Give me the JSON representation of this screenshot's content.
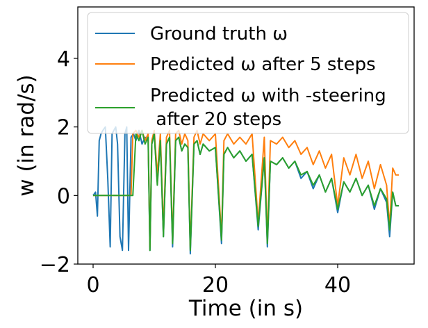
{
  "chart_data": {
    "type": "line",
    "title": "",
    "xlabel": "Time (in s)",
    "ylabel": "w (in rad/s)",
    "xlim": [
      -2.5,
      52.5
    ],
    "ylim": [
      -2,
      5.5
    ],
    "xticks": [
      0,
      20,
      40
    ],
    "xtick_labels": [
      "0",
      "20",
      "40"
    ],
    "yticks": [
      -2,
      0,
      2,
      4
    ],
    "ytick_labels": [
      "−2",
      "0",
      "2",
      "4"
    ],
    "legend_position": "top-left",
    "series": [
      {
        "name": "Ground truth ω",
        "legend_lines": [
          "Ground truth ω"
        ],
        "color": "#1f77b4",
        "x": [
          0,
          0.4,
          0.7,
          1.0,
          1.3,
          1.6,
          2.0,
          2.4,
          2.8,
          3.1,
          3.4,
          3.7,
          4.0,
          4.4,
          4.8,
          5.2,
          5.5,
          5.8,
          6.2,
          6.6,
          7.0,
          7.5,
          8.0,
          8.5,
          9.0,
          9.3,
          9.6,
          10.0,
          10.5,
          11.0,
          11.5,
          12.0,
          12.5,
          13.0,
          13.5,
          14.0,
          14.5,
          15.0,
          15.5,
          15.9,
          16.5,
          17.0,
          17.5,
          18.0,
          19.0,
          20.0,
          21.0,
          21.4,
          22.0,
          23.0,
          24.0,
          25.0,
          26.0,
          27.0,
          28.0,
          28.5,
          29.0,
          30.0,
          31.0,
          32.0,
          33.0,
          34.0,
          35.0,
          36.0,
          37.0,
          38.0,
          39.0,
          40.0,
          41.0,
          42.0,
          43.0,
          44.0,
          45.0,
          46.0,
          47.0,
          48.0,
          48.5,
          49.0,
          49.5,
          50.0
        ],
        "y": [
          0.0,
          0.1,
          -0.6,
          1.6,
          1.8,
          1.9,
          2.0,
          0.5,
          -1.5,
          1.8,
          1.9,
          2.0,
          1.5,
          -1.2,
          -1.6,
          1.8,
          2.0,
          -1.6,
          1.7,
          1.8,
          1.6,
          1.9,
          1.5,
          1.7,
          1.6,
          -1.6,
          1.5,
          1.8,
          0.4,
          1.6,
          -1.2,
          1.5,
          1.7,
          -1.5,
          1.6,
          1.7,
          1.3,
          1.5,
          1.4,
          -1.7,
          1.5,
          1.6,
          1.2,
          1.5,
          1.3,
          1.4,
          -1.4,
          1.2,
          1.4,
          1.1,
          1.3,
          1.0,
          1.2,
          -1.0,
          1.1,
          -1.5,
          1.0,
          0.9,
          1.1,
          0.8,
          1.0,
          0.5,
          0.7,
          0.2,
          0.6,
          0.1,
          0.5,
          -0.5,
          0.4,
          0.1,
          0.5,
          0.0,
          0.3,
          -0.4,
          0.2,
          -0.2,
          -1.2,
          0.1,
          -0.3,
          -0.3
        ]
      },
      {
        "name": "Predicted ω after 5 steps",
        "legend_lines": [
          "Predicted ω after 5 steps"
        ],
        "color": "#ff7f0e",
        "x": [
          0,
          2,
          4,
          6.2,
          6.5,
          7.0,
          7.5,
          8.0,
          8.5,
          9.0,
          9.3,
          9.6,
          10.0,
          10.5,
          11.0,
          11.5,
          12.0,
          12.5,
          13.0,
          13.5,
          14.0,
          14.5,
          15.0,
          15.5,
          15.9,
          16.5,
          17.0,
          17.5,
          18.0,
          19.0,
          20.0,
          21.0,
          21.4,
          22.0,
          23.0,
          24.0,
          25.0,
          26.0,
          27.0,
          28.0,
          28.5,
          29.0,
          30.0,
          31.0,
          32.0,
          33.0,
          34.0,
          35.0,
          36.0,
          37.0,
          38.0,
          39.0,
          40.0,
          41.0,
          42.0,
          43.0,
          44.0,
          45.0,
          46.0,
          47.0,
          48.0,
          48.5,
          49.0,
          49.5,
          50.0
        ],
        "y": [
          0.0,
          0.0,
          0.0,
          0.0,
          1.8,
          1.9,
          1.7,
          1.9,
          1.6,
          1.8,
          -1.5,
          1.6,
          1.9,
          0.6,
          1.8,
          -1.0,
          1.7,
          1.9,
          -1.3,
          1.8,
          1.9,
          1.5,
          1.8,
          1.6,
          -1.5,
          1.7,
          1.9,
          1.5,
          1.8,
          1.6,
          1.8,
          -1.2,
          1.6,
          1.8,
          1.5,
          1.7,
          1.5,
          1.8,
          -0.8,
          1.7,
          -1.3,
          1.6,
          1.5,
          1.7,
          1.4,
          1.6,
          1.2,
          1.4,
          0.9,
          1.3,
          0.8,
          1.2,
          -0.3,
          1.1,
          0.6,
          1.2,
          0.5,
          1.0,
          0.2,
          0.9,
          0.3,
          -0.9,
          0.8,
          0.6,
          0.6
        ]
      },
      {
        "name": "Predicted ω with -steering after 20 steps",
        "legend_lines": [
          "Predicted ω with -steering",
          " after 20 steps"
        ],
        "color": "#2ca02c",
        "x": [
          0,
          2,
          4,
          6.5,
          7.0,
          7.5,
          8.0,
          8.5,
          9.0,
          9.3,
          9.6,
          10.0,
          10.5,
          11.0,
          11.5,
          12.0,
          12.5,
          13.0,
          13.5,
          14.0,
          14.5,
          15.0,
          15.5,
          15.9,
          16.5,
          17.0,
          17.5,
          18.0,
          19.0,
          20.0,
          21.0,
          21.4,
          22.0,
          23.0,
          24.0,
          25.0,
          26.0,
          27.0,
          28.0,
          28.5,
          29.0,
          30.0,
          31.0,
          32.0,
          33.0,
          34.0,
          35.0,
          36.0,
          37.0,
          38.0,
          39.0,
          40.0,
          41.0,
          42.0,
          43.0,
          44.0,
          45.0,
          46.0,
          47.0,
          48.0,
          48.5,
          49.0,
          49.5,
          50.0
        ],
        "y": [
          0.0,
          0.0,
          0.0,
          0.0,
          1.8,
          1.6,
          1.9,
          1.5,
          1.7,
          -1.6,
          1.5,
          1.8,
          0.3,
          1.6,
          -1.2,
          1.5,
          1.7,
          -1.4,
          1.6,
          1.7,
          1.3,
          1.5,
          1.4,
          -1.6,
          1.5,
          1.6,
          1.2,
          1.5,
          1.3,
          1.4,
          -1.3,
          1.2,
          1.4,
          1.1,
          1.3,
          1.0,
          1.2,
          -0.9,
          1.1,
          -1.4,
          1.0,
          0.9,
          1.1,
          0.8,
          1.0,
          0.6,
          0.7,
          0.3,
          0.6,
          0.1,
          0.5,
          -0.4,
          0.4,
          0.1,
          0.5,
          0.0,
          0.3,
          -0.3,
          0.2,
          -0.1,
          -1.0,
          0.1,
          -0.3,
          -0.3
        ]
      }
    ]
  }
}
